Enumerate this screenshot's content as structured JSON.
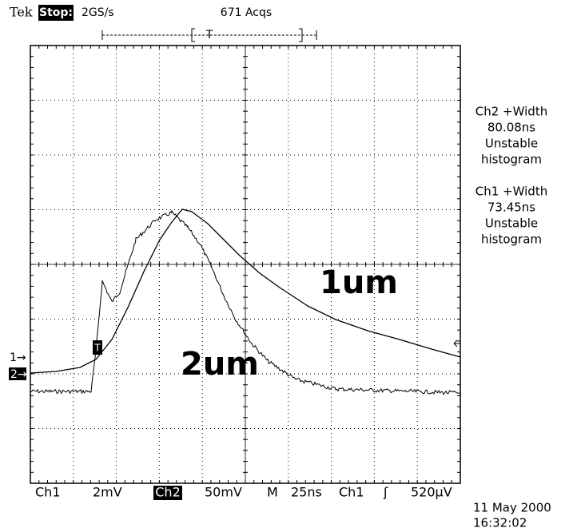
{
  "header": {
    "brand": "Tek",
    "status": "Stop:",
    "rate": "2GS/s",
    "acqs": "671 Acqs",
    "record_marker": "T"
  },
  "measurements": [
    {
      "name": "Ch2 +Width",
      "value": "80.08ns",
      "state": "Unstable",
      "mode": "histogram"
    },
    {
      "name": "Ch1 +Width",
      "value": "73.45ns",
      "state": "Unstable",
      "mode": "histogram"
    }
  ],
  "labels": {
    "upper": "1um",
    "lower": "2um"
  },
  "markers": {
    "ch1": "1→",
    "ch2": "2→",
    "trigger": "T"
  },
  "footer": {
    "ch1": "Ch1",
    "ch1_scale": "2mV",
    "ch2": "Ch2",
    "ch2_scale": "50mV",
    "time_label": "M",
    "time_scale": "25ns",
    "trig_source": "Ch1",
    "trig_slope": "ʃ",
    "trig_level": "520µV"
  },
  "timestamp": {
    "date": "11 May 2000",
    "time": "16:32:02"
  }
}
